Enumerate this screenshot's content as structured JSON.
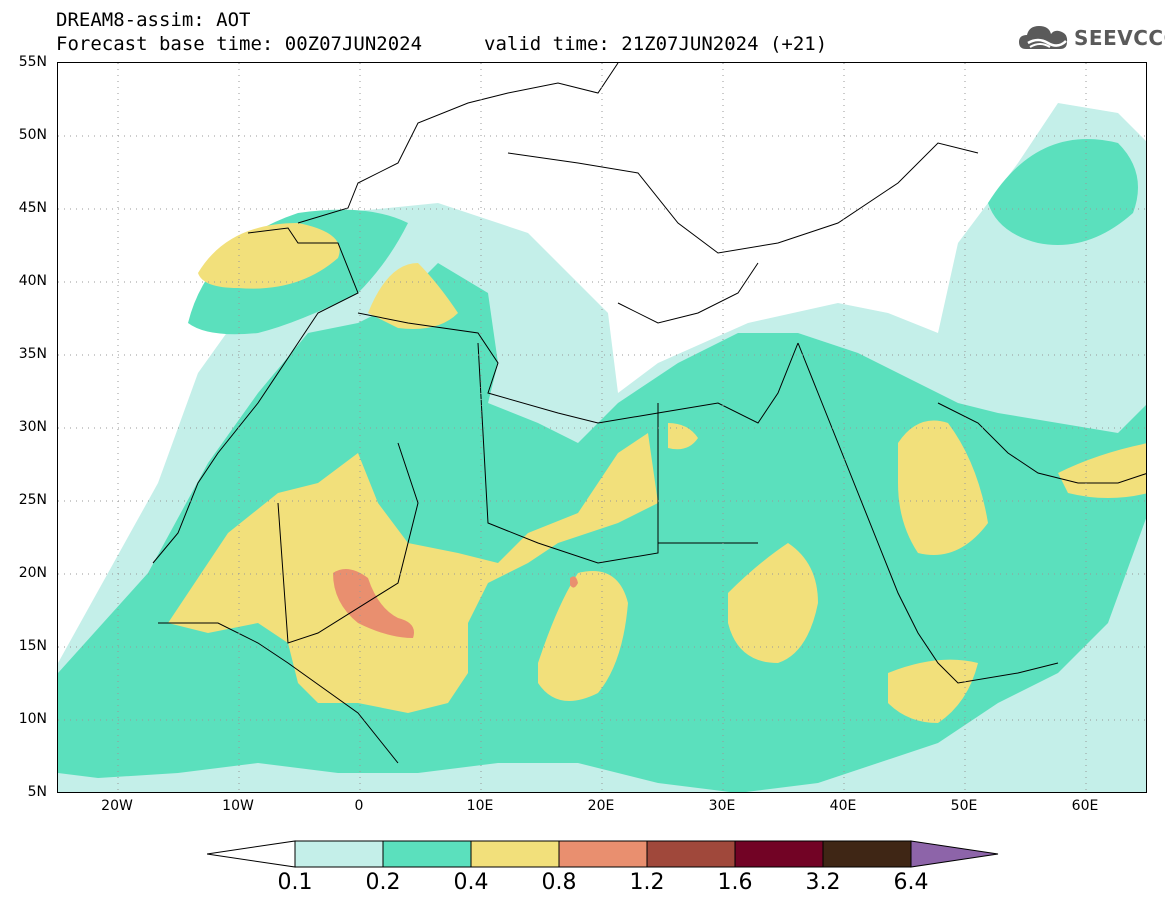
{
  "header": {
    "title_line1": "DREAM8-assim: AOT",
    "title_line2": "Forecast base time: 00Z07JUN2024",
    "valid_time": "valid time: 21Z07JUN2024 (+21)",
    "logo_text": "SEEVCCC",
    "logo_icon": "cloud-icon"
  },
  "map": {
    "lat_labels": [
      "55N",
      "50N",
      "45N",
      "40N",
      "35N",
      "30N",
      "25N",
      "20N",
      "15N",
      "10N",
      "5N"
    ],
    "lon_labels": [
      "20W",
      "10W",
      "0",
      "10E",
      "20E",
      "30E",
      "40E",
      "50E",
      "60E"
    ],
    "extent": {
      "lon_min": -25,
      "lon_max": 65,
      "lat_min": 5,
      "lat_max": 55
    },
    "gridlines": "dotted"
  },
  "colorbar": {
    "labels": [
      "0.1",
      "0.2",
      "0.4",
      "0.8",
      "1.2",
      "1.6",
      "3.2",
      "6.4"
    ],
    "colors": [
      "#ffffff",
      "#c4efe9",
      "#5be0bd",
      "#f2e07b",
      "#e98f6f",
      "#a0483b",
      "#720325",
      "#3f2615",
      "#8d64a9"
    ]
  },
  "colors": {
    "aot_0_1_0_2": "#c4efe9",
    "aot_0_2_0_4": "#5be0bd",
    "aot_0_4_0_8": "#f2e07b",
    "aot_0_8_1_2": "#e98f6f"
  }
}
